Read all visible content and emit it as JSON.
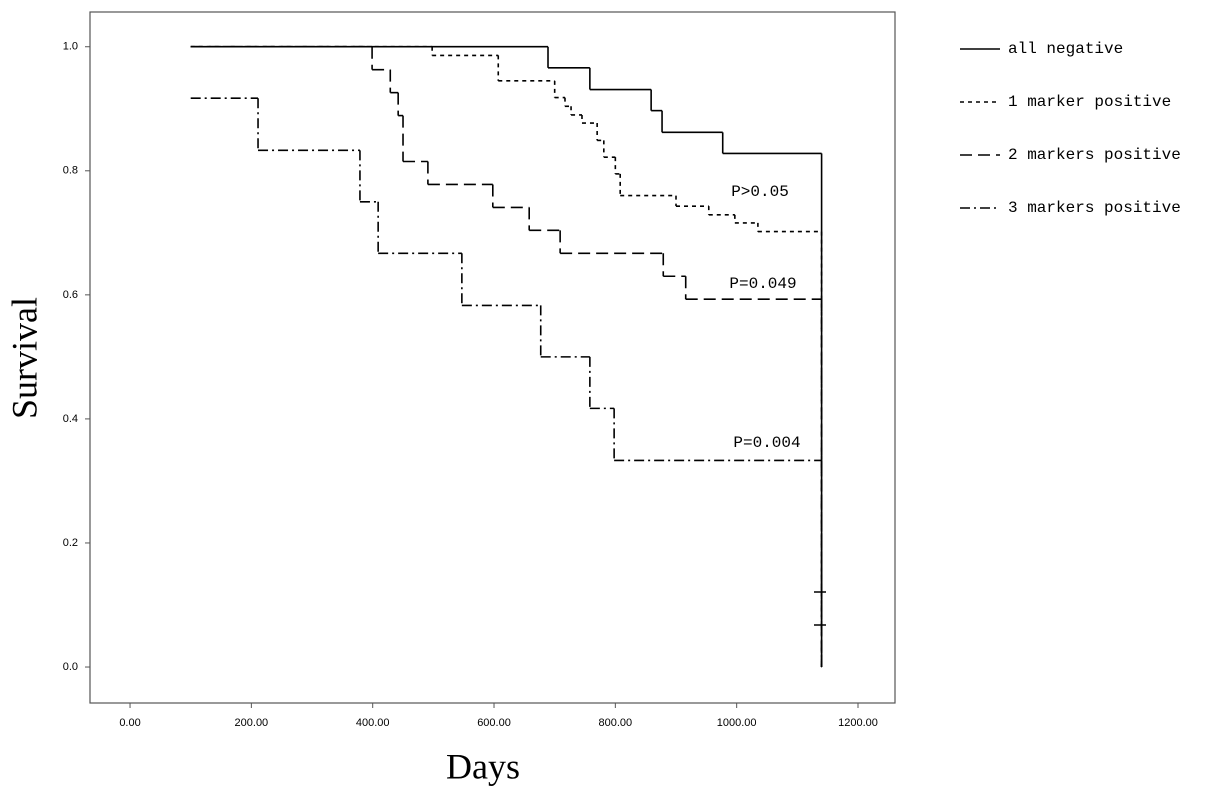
{
  "chart_data": {
    "type": "step",
    "x_label": "Days",
    "y_label": "Survival",
    "xlim": [
      -66,
      1261
    ],
    "ylim": [
      -0.058,
      1.056
    ],
    "xticks": [
      {
        "value": 0,
        "label": "0.00"
      },
      {
        "value": 200,
        "label": "200.00"
      },
      {
        "value": 400,
        "label": "400.00"
      },
      {
        "value": 600,
        "label": "600.00"
      },
      {
        "value": 800,
        "label": "800.00"
      },
      {
        "value": 1000,
        "label": "1000.00"
      },
      {
        "value": 1200,
        "label": "1200.00"
      }
    ],
    "yticks": [
      {
        "value": 0,
        "label": "0.0"
      },
      0.2,
      0.4,
      0.6,
      0.8,
      {
        "value": 1,
        "label": "1.0"
      }
    ],
    "grid": false,
    "series": [
      {
        "name": "all negative",
        "color": "#000000",
        "dash": "none",
        "x": [
          100,
          689,
          758,
          859,
          877,
          977,
          1140
        ],
        "values": [
          1.0,
          0.966,
          0.931,
          0.897,
          0.862,
          0.828,
          0
        ]
      },
      {
        "name": "1 marker positive",
        "color": "#000000",
        "dash": "4 4",
        "x": [
          100,
          498,
          607,
          700,
          717,
          727,
          745,
          770,
          781,
          800,
          808,
          900,
          954,
          997,
          1035,
          1140
        ],
        "values": [
          1.0,
          0.986,
          0.945,
          0.918,
          0.904,
          0.89,
          0.877,
          0.849,
          0.822,
          0.795,
          0.76,
          0.743,
          0.729,
          0.716,
          0.702,
          0
        ]
      },
      {
        "name": "2 markers positive",
        "color": "#000000",
        "dash": "12 6",
        "x": [
          100,
          399,
          429,
          442,
          450,
          491,
          598,
          658,
          709,
          879,
          916,
          1140
        ],
        "values": [
          1.0,
          0.963,
          0.926,
          0.889,
          0.815,
          0.778,
          0.741,
          0.704,
          0.667,
          0.63,
          0.593,
          0
        ]
      },
      {
        "name": "3 markers positive",
        "color": "#000000",
        "dash": "10 4 2 4",
        "x": [
          100,
          211,
          379,
          409,
          547,
          677,
          758,
          798,
          1140
        ],
        "values": [
          0.917,
          0.833,
          0.75,
          0.667,
          0.583,
          0.5,
          0.417,
          0.333,
          0
        ]
      }
    ],
    "annotations": [
      "P>0.05",
      "P=0.049",
      "P=0.004"
    ]
  }
}
